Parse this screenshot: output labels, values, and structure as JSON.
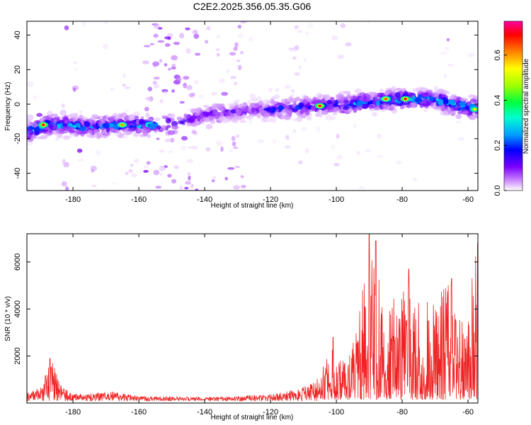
{
  "figure_title": "C2E2.2025.356.05.35.G06",
  "chart_data": [
    {
      "type": "heatmap",
      "title": "C2E2.2025.356.05.35.G06",
      "xlabel": "Height of straight line (km)",
      "ylabel": "Frequency (Hz)",
      "xlim": [
        -194,
        -57
      ],
      "ylim": [
        -50,
        48
      ],
      "xticks": [
        -180,
        -160,
        -140,
        -120,
        -100,
        -80,
        -60
      ],
      "yticks": [
        -40,
        -20,
        0,
        20,
        40
      ],
      "colorbar": {
        "label": "Normalized spectral amplitude",
        "range": [
          0.0,
          0.75
        ],
        "ticks": [
          0.0,
          0.2,
          0.4,
          0.6
        ],
        "stops": [
          "#ffffff",
          "#cc88ff",
          "#7a00ff",
          "#0000ff",
          "#00a0ff",
          "#00ffd0",
          "#00ff40",
          "#a0ff00",
          "#ffff00",
          "#ff8000",
          "#ff0000",
          "#ff00a0"
        ]
      },
      "ridge": [
        {
          "x": -194,
          "y": -16
        },
        {
          "x": -188,
          "y": -12
        },
        {
          "x": -175,
          "y": -13
        },
        {
          "x": -165,
          "y": -12
        },
        {
          "x": -150,
          "y": -12
        },
        {
          "x": -140,
          "y": -6
        },
        {
          "x": -130,
          "y": -4
        },
        {
          "x": -120,
          "y": -3
        },
        {
          "x": -110,
          "y": -2
        },
        {
          "x": -100,
          "y": 0
        },
        {
          "x": -90,
          "y": 1
        },
        {
          "x": -80,
          "y": 3
        },
        {
          "x": -70,
          "y": 3
        },
        {
          "x": -60,
          "y": -2
        }
      ],
      "hotspots": [
        {
          "x": -189,
          "y": -12,
          "v": 0.7
        },
        {
          "x": -165,
          "y": -12,
          "v": 0.6
        },
        {
          "x": -105,
          "y": -1,
          "v": 0.7
        },
        {
          "x": -85,
          "y": 3,
          "v": 0.65
        },
        {
          "x": -79,
          "y": 3,
          "v": 0.7
        },
        {
          "x": -58,
          "y": -3,
          "v": 0.55
        }
      ]
    },
    {
      "type": "line",
      "xlabel": "Height of straight line (km)",
      "ylabel": "SNR (10 * v/v)",
      "xlim": [
        -194,
        -57
      ],
      "ylim": [
        0,
        7200
      ],
      "xticks": [
        -180,
        -160,
        -140,
        -120,
        -100,
        -80,
        -60
      ],
      "yticks": [
        2000,
        4000,
        6000
      ],
      "series": [
        {
          "name": "SNR",
          "color": "#ee2222",
          "envelope": [
            {
              "x": -194,
              "y": 400
            },
            {
              "x": -189,
              "y": 600
            },
            {
              "x": -188,
              "y": 1500
            },
            {
              "x": -186,
              "y": 1700
            },
            {
              "x": -184,
              "y": 700
            },
            {
              "x": -180,
              "y": 300
            },
            {
              "x": -168,
              "y": 400
            },
            {
              "x": -160,
              "y": 220
            },
            {
              "x": -150,
              "y": 200
            },
            {
              "x": -140,
              "y": 180
            },
            {
              "x": -130,
              "y": 200
            },
            {
              "x": -120,
              "y": 300
            },
            {
              "x": -112,
              "y": 500
            },
            {
              "x": -105,
              "y": 1000
            },
            {
              "x": -101,
              "y": 2200
            },
            {
              "x": -98,
              "y": 1600
            },
            {
              "x": -94,
              "y": 2600
            },
            {
              "x": -91,
              "y": 5500
            },
            {
              "x": -89,
              "y": 6800
            },
            {
              "x": -86,
              "y": 3500
            },
            {
              "x": -82,
              "y": 4000
            },
            {
              "x": -78,
              "y": 5200
            },
            {
              "x": -74,
              "y": 3500
            },
            {
              "x": -70,
              "y": 4300
            },
            {
              "x": -66,
              "y": 4500
            },
            {
              "x": -62,
              "y": 4000
            },
            {
              "x": -58,
              "y": 5000
            },
            {
              "x": -57,
              "y": 6800
            }
          ],
          "peaks": [
            {
              "x": -187,
              "y": 1900
            },
            {
              "x": -101,
              "y": 2800
            },
            {
              "x": -90,
              "y": 7200
            },
            {
              "x": -88,
              "y": 6900
            },
            {
              "x": -78,
              "y": 5700
            },
            {
              "x": -65,
              "y": 5300
            },
            {
              "x": -57,
              "y": 6800
            }
          ]
        }
      ]
    }
  ]
}
